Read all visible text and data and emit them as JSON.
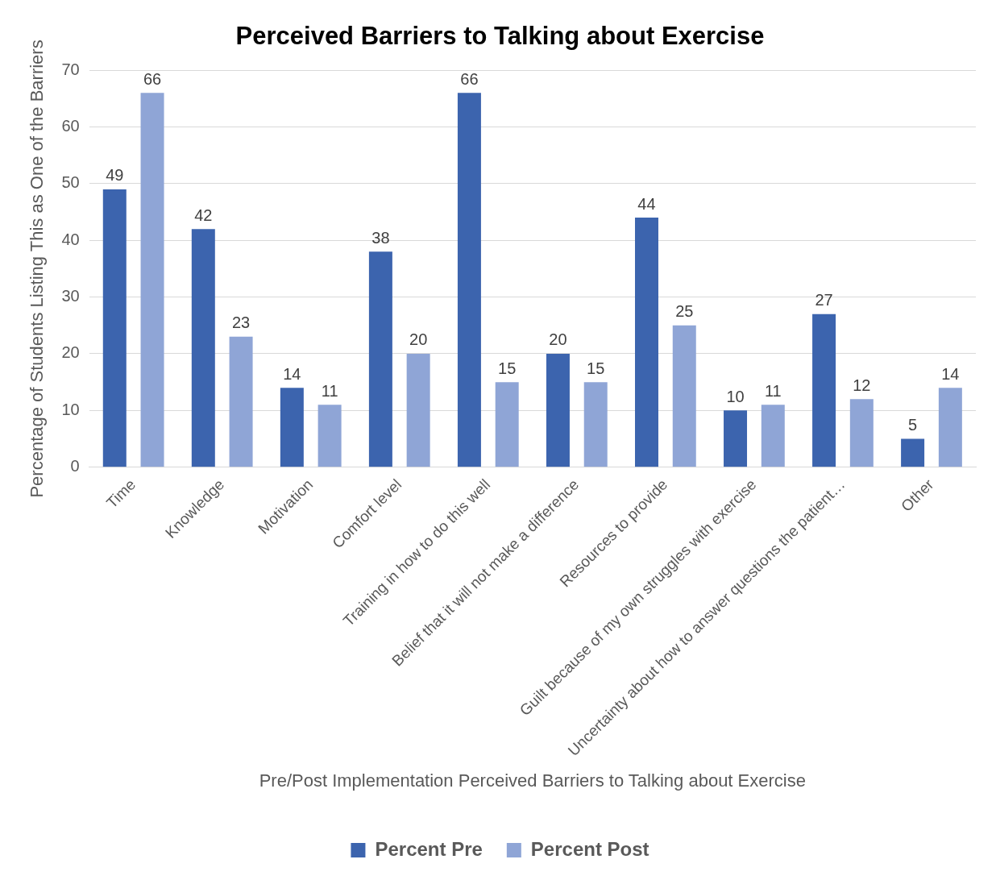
{
  "chart_data": {
    "type": "bar",
    "title": "Perceived Barriers to Talking about Exercise",
    "xlabel": "Pre/Post Implementation Perceived Barriers to Talking about Exercise",
    "ylabel": "Percentage of Students Listing This as One of the Barriers",
    "categories": [
      "Time",
      "Knowledge",
      "Motivation",
      "Comfort level",
      "Training in how to do this well",
      "Belief that it will not make a difference",
      "Resources to provide",
      "Guilt because of my own struggles with exercise",
      "Uncertainty about how to answer questions the patient…",
      "Other"
    ],
    "series": [
      {
        "name": "Percent Pre",
        "color": "#3c64ae",
        "values": [
          49,
          42,
          14,
          38,
          66,
          20,
          44,
          10,
          27,
          5
        ]
      },
      {
        "name": "Percent Post",
        "color": "#8fa5d6",
        "values": [
          66,
          23,
          11,
          20,
          15,
          15,
          25,
          11,
          12,
          14
        ]
      }
    ],
    "ylim": [
      0,
      70
    ],
    "yticks": [
      0,
      10,
      20,
      30,
      40,
      50,
      60,
      70
    ],
    "grid": "y",
    "legend": "bottom",
    "data_labels": true
  }
}
